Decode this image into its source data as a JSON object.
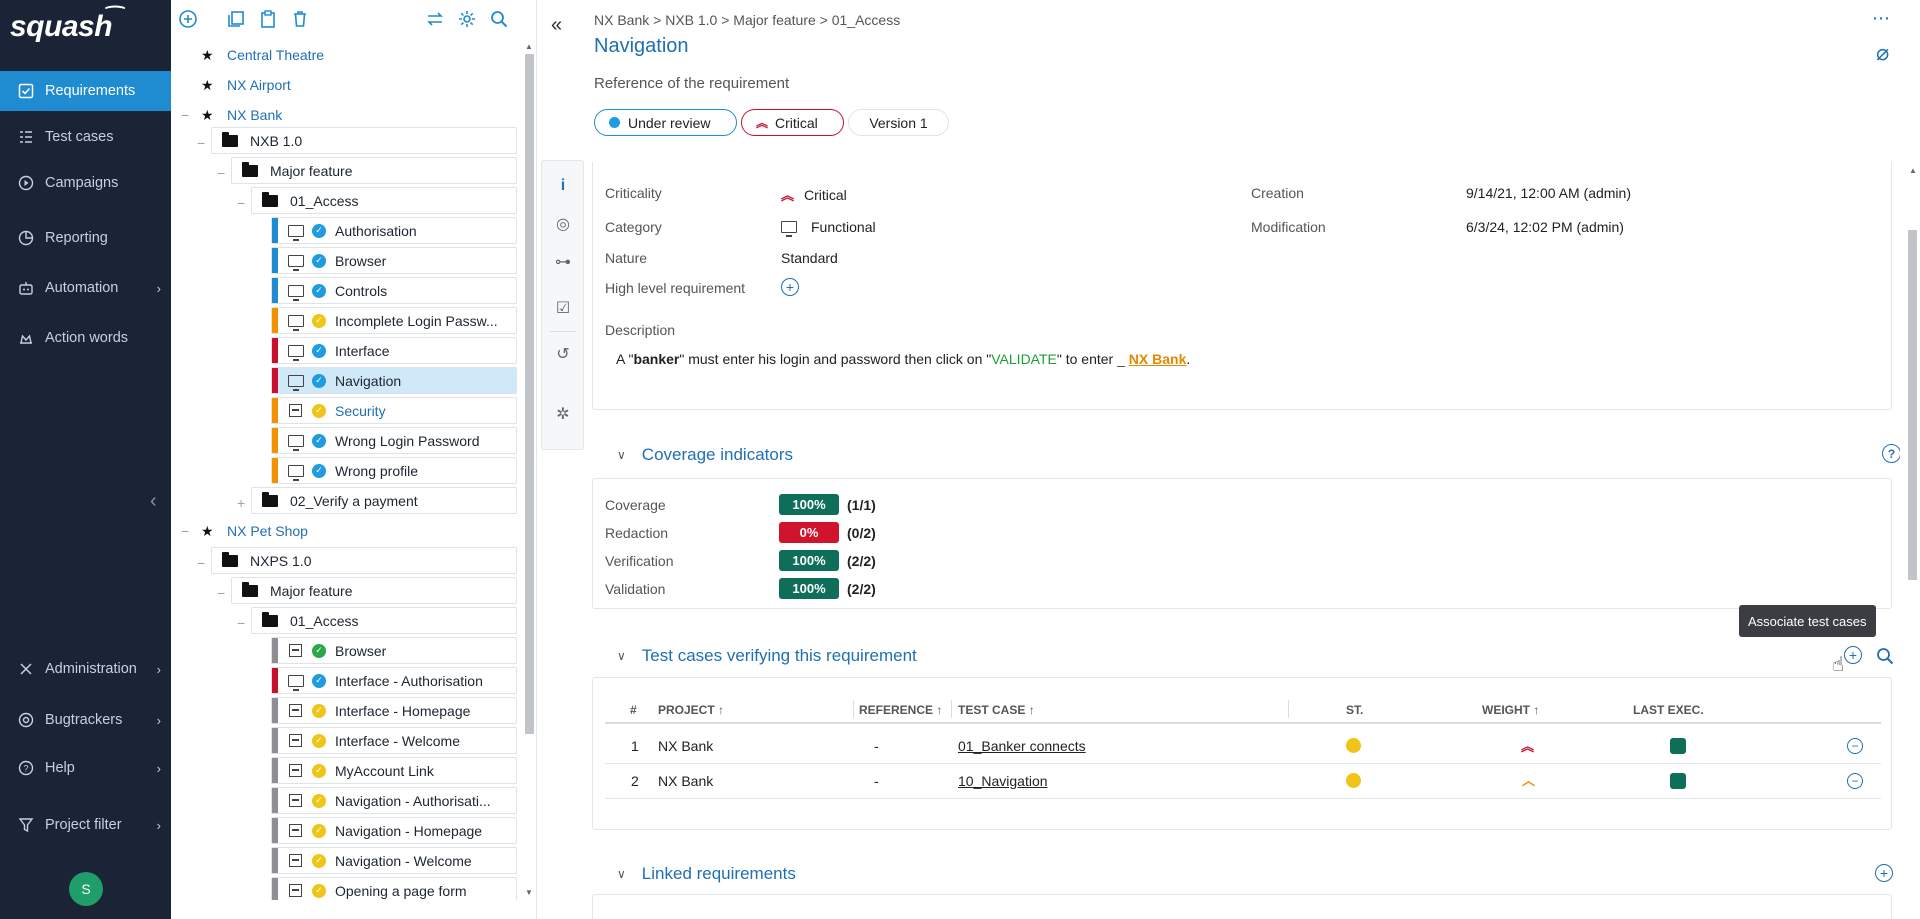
{
  "nav": {
    "brand": "squash",
    "items": [
      {
        "label": "Requirements",
        "icon": "requirements-icon",
        "active": true
      },
      {
        "label": "Test cases",
        "icon": "test-cases-icon"
      },
      {
        "label": "Campaigns",
        "icon": "campaigns-icon"
      },
      {
        "label": "Reporting",
        "icon": "reporting-icon"
      },
      {
        "label": "Automation",
        "icon": "automation-icon",
        "chevron": true
      },
      {
        "label": "Action words",
        "icon": "action-words-icon"
      }
    ],
    "bottom_items": [
      {
        "label": "Administration",
        "icon": "administration-icon"
      },
      {
        "label": "Bugtrackers",
        "icon": "bugtrackers-icon"
      },
      {
        "label": "Help",
        "icon": "help-icon"
      },
      {
        "label": "Project filter",
        "icon": "filter-icon"
      }
    ],
    "user_initial": "S"
  },
  "tree": {
    "nodes": [
      {
        "label": "Central Theatre"
      },
      {
        "label": "NX Airport"
      },
      {
        "label": "NX Bank"
      },
      {
        "label": "NXB 1.0"
      },
      {
        "label": "Major feature"
      },
      {
        "label": "01_Access"
      },
      {
        "label": "Authorisation"
      },
      {
        "label": "Browser"
      },
      {
        "label": "Controls"
      },
      {
        "label": "Incomplete Login Passw..."
      },
      {
        "label": "Interface"
      },
      {
        "label": "Navigation"
      },
      {
        "label": "Security"
      },
      {
        "label": "Wrong Login Password"
      },
      {
        "label": "Wrong profile"
      },
      {
        "label": "02_Verify a payment"
      },
      {
        "label": "NX Pet Shop"
      },
      {
        "label": "NXPS 1.0"
      },
      {
        "label": "Major feature"
      },
      {
        "label": "01_Access"
      },
      {
        "label": "Browser"
      },
      {
        "label": "Interface - Authorisation"
      },
      {
        "label": "Interface - Homepage"
      },
      {
        "label": "Interface - Welcome"
      },
      {
        "label": "MyAccount Link"
      },
      {
        "label": "Navigation - Authorisati..."
      },
      {
        "label": "Navigation - Homepage"
      },
      {
        "label": "Navigation - Welcome"
      },
      {
        "label": "Opening a page form"
      }
    ]
  },
  "header": {
    "breadcrumb": "NX Bank > NXB 1.0 > Major feature > 01_Access",
    "title": "Navigation",
    "reference_label": "Reference of the requirement",
    "status": "Under review",
    "criticality": "Critical",
    "version": "Version 1"
  },
  "info": {
    "criticality_label": "Criticality",
    "criticality_value": "Critical",
    "category_label": "Category",
    "category_value": "Functional",
    "nature_label": "Nature",
    "nature_value": "Standard",
    "high_level_label": "High level requirement",
    "creation_label": "Creation",
    "creation_value": "9/14/21, 12:00 AM (admin)",
    "modification_label": "Modification",
    "modification_value": "6/3/24, 12:02 PM (admin)",
    "description_label": "Description",
    "description_parts": {
      "a": "A \"",
      "b": "banker",
      "c": "\" must enter his login and password then click on \"",
      "d": "VALIDATE",
      "e": "\" to enter ",
      "f": "NX Bank",
      "g": "."
    }
  },
  "coverage": {
    "title": "Coverage indicators",
    "rows": [
      {
        "label": "Coverage",
        "value": "100%",
        "ratio": "(1/1)",
        "color": "#0f6e5a"
      },
      {
        "label": "Redaction",
        "value": "0%",
        "ratio": "(0/2)",
        "color": "#d0142c"
      },
      {
        "label": "Verification",
        "value": "100%",
        "ratio": "(2/2)",
        "color": "#0f6e5a"
      },
      {
        "label": "Validation",
        "value": "100%",
        "ratio": "(2/2)",
        "color": "#0f6e5a"
      }
    ]
  },
  "testcases": {
    "title": "Test cases verifying this requirement",
    "tooltip": "Associate test cases",
    "columns": {
      "num": "#",
      "project": "PROJECT",
      "reference": "REFERENCE",
      "test_case": "TEST CASE",
      "status": "ST.",
      "weight": "WEIGHT",
      "last_exec": "LAST EXEC."
    },
    "rows": [
      {
        "num": "1",
        "project": "NX Bank",
        "reference": "-",
        "test_case": "01_Banker connects"
      },
      {
        "num": "2",
        "project": "NX Bank",
        "reference": "-",
        "test_case": "10_Navigation"
      }
    ]
  },
  "linked": {
    "title": "Linked requirements"
  },
  "colors": {
    "accent": "#1f6fb5",
    "nav_bg": "#1b2336",
    "active": "#1f8bd0",
    "critical": "#c8102e",
    "orange": "#f39200"
  }
}
